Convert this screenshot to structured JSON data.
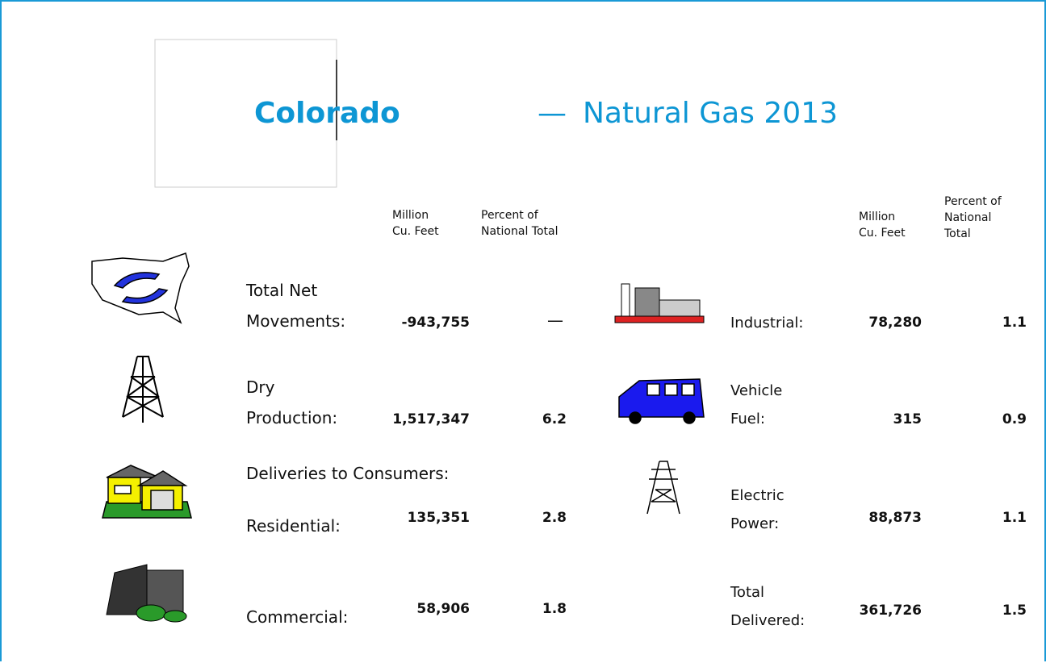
{
  "title": {
    "state": "Colorado",
    "dash": "—",
    "subtitle": "Natural Gas 2013"
  },
  "left_headers": {
    "volume": "Million\nCu. Feet",
    "percent": "Percent of\nNational Total"
  },
  "right_headers": {
    "volume": "Million\nCu. Feet",
    "percent": "Percent of\nNational\nTotal"
  },
  "deliveries_heading": "Deliveries to Consumers:",
  "left_rows": [
    {
      "label": "Total Net\nMovements:",
      "volume": "-943,755",
      "percent": "—"
    },
    {
      "label": "Dry\nProduction:",
      "volume": "1,517,347",
      "percent": "6.2"
    },
    {
      "label": "Residential:",
      "volume": "135,351",
      "percent": "2.8"
    },
    {
      "label": "Commercial:",
      "volume": "58,906",
      "percent": "1.8"
    }
  ],
  "right_rows": [
    {
      "label": "Industrial:",
      "volume": "78,280",
      "percent": "1.1"
    },
    {
      "label": "Vehicle\nFuel:",
      "volume": "315",
      "percent": "0.9"
    },
    {
      "label": "Electric\nPower:",
      "volume": "88,873",
      "percent": "1.1"
    },
    {
      "label": "Total\nDelivered:",
      "volume": "361,726",
      "percent": "1.5"
    }
  ]
}
